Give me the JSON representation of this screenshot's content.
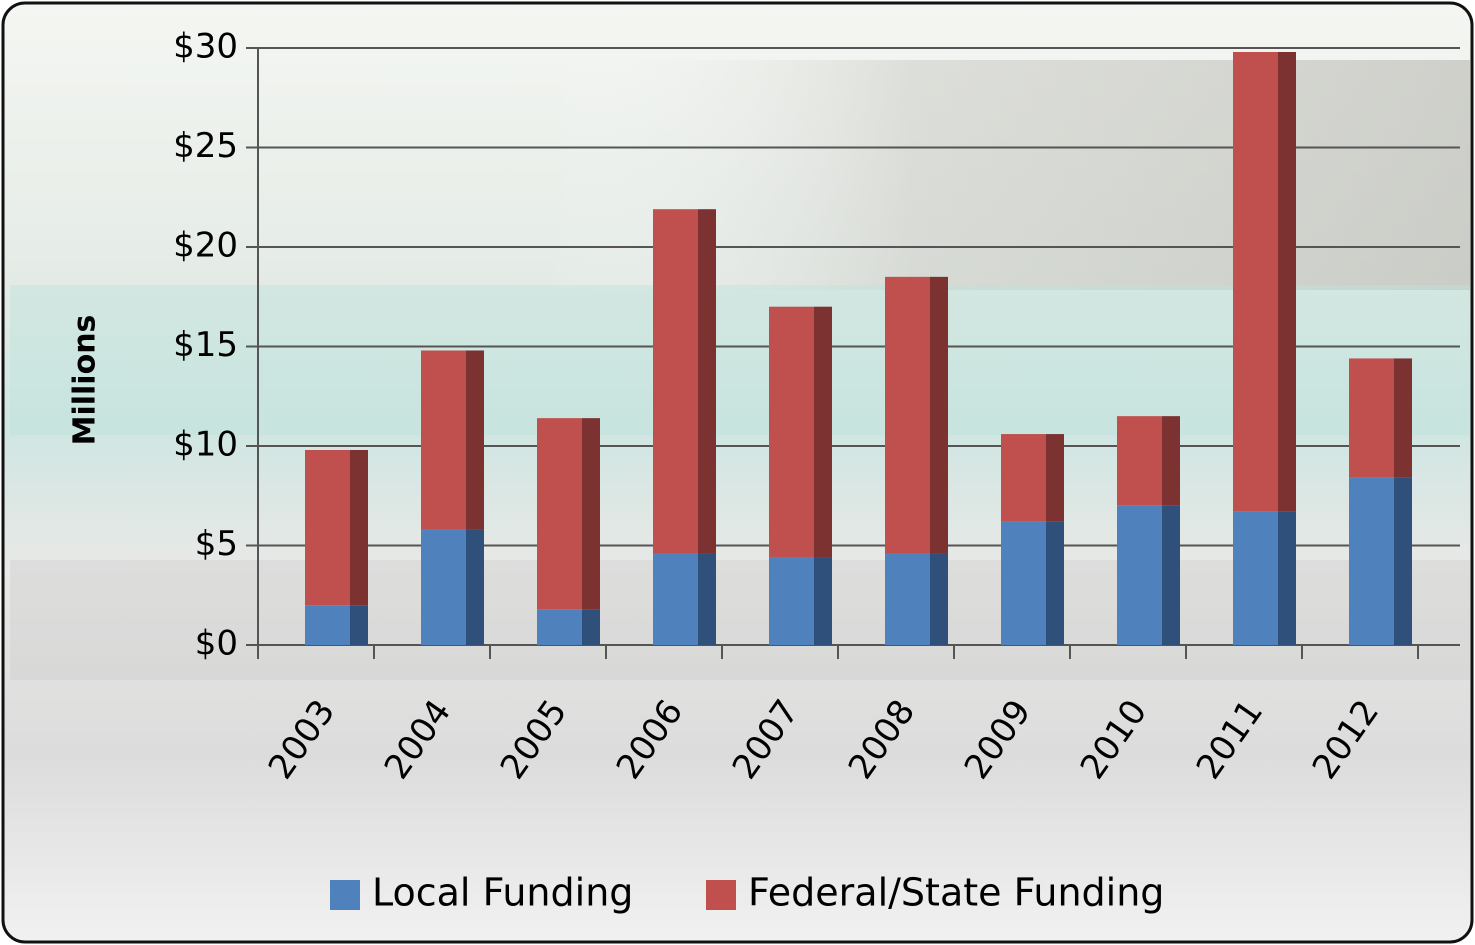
{
  "chart_data": {
    "type": "stacked-bar",
    "y_label": "Millions",
    "categories": [
      "2003",
      "2004",
      "2005",
      "2006",
      "2007",
      "2008",
      "2009",
      "2010",
      "2011",
      "2012"
    ],
    "series": [
      {
        "name": "Local Funding",
        "color": "#4f81bd",
        "side_color": "#2f507a",
        "values": [
          2.0,
          5.8,
          1.8,
          4.6,
          4.4,
          4.6,
          6.2,
          7.0,
          6.7,
          8.4
        ]
      },
      {
        "name": "Federal/State Funding",
        "color": "#c0504d",
        "side_color": "#7b3231",
        "values": [
          7.8,
          9.0,
          9.6,
          17.3,
          12.6,
          13.9,
          4.4,
          4.5,
          23.1,
          6.0
        ]
      }
    ],
    "ylim": [
      0,
      30
    ],
    "yticks": [
      {
        "value": 0,
        "label": "$0"
      },
      {
        "value": 5,
        "label": "$5"
      },
      {
        "value": 10,
        "label": "$10"
      },
      {
        "value": 15,
        "label": "$15"
      },
      {
        "value": 20,
        "label": "$20"
      },
      {
        "value": 25,
        "label": "$25"
      },
      {
        "value": 30,
        "label": "$30"
      }
    ],
    "grid": true,
    "legend": "bottom"
  }
}
